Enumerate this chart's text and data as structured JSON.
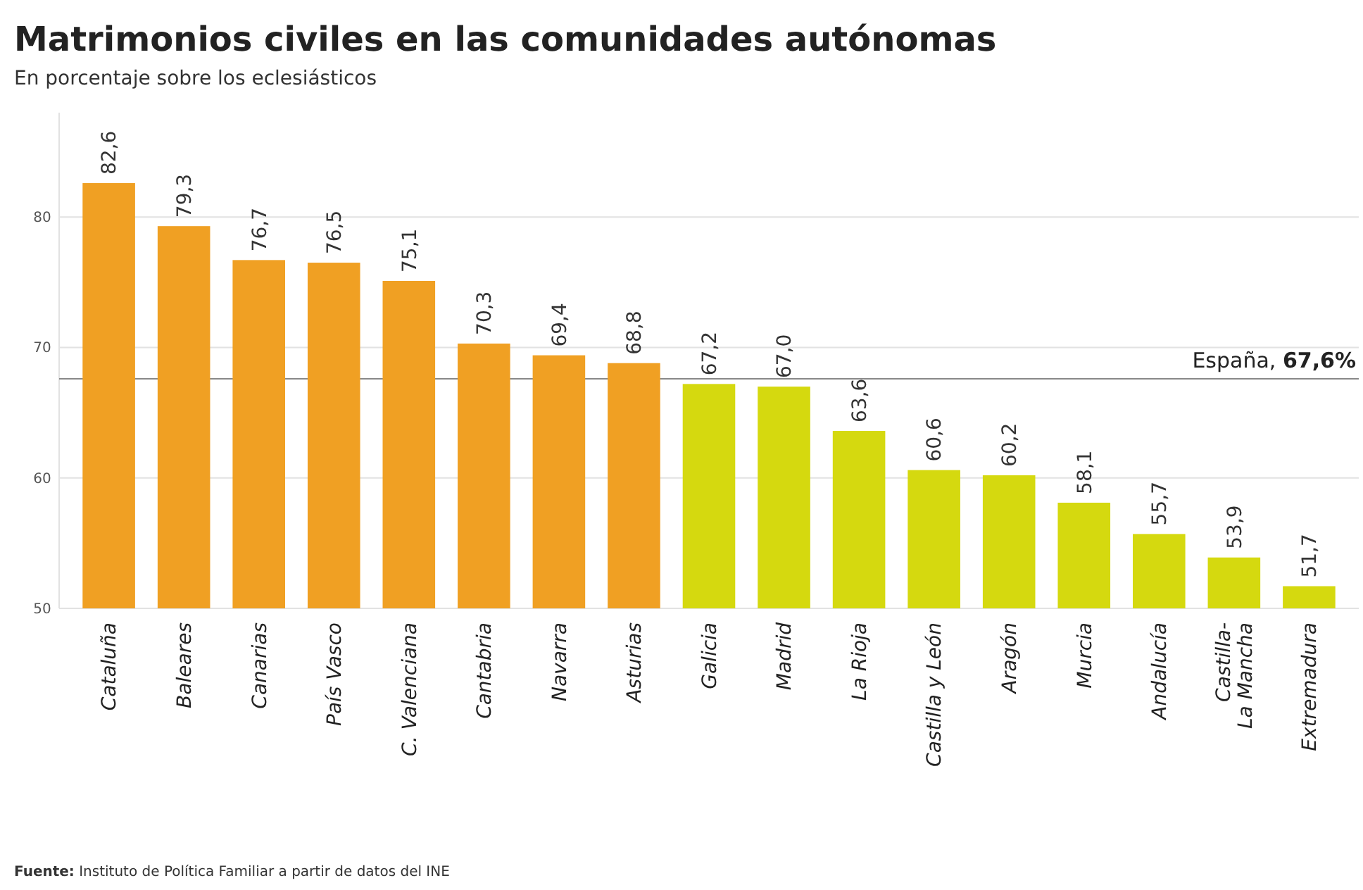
{
  "chart_data": {
    "type": "bar",
    "title": "Matrimonios civiles en las comunidades autónomas",
    "subtitle": "En porcentaje sobre los eclesiásticos",
    "categories": [
      "Cataluña",
      "Baleares",
      "Canarias",
      "País Vasco",
      "C. Valenciana",
      "Cantabria",
      "Navarra",
      "Asturias",
      "Galicia",
      "Madrid",
      "La Rioja",
      "Castilla y León",
      "Aragón",
      "Murcia",
      "Andalucía",
      "Castilla-\nLa Mancha",
      "Extremadura"
    ],
    "values": [
      82.6,
      79.3,
      76.7,
      76.5,
      75.1,
      70.3,
      69.4,
      68.8,
      67.2,
      67.0,
      63.6,
      60.6,
      60.2,
      58.1,
      55.7,
      53.9,
      51.7
    ],
    "value_labels": [
      "82,6",
      "79,3",
      "76,7",
      "76,5",
      "75,1",
      "70,3",
      "69,4",
      "68,8",
      "67,2",
      "67,0",
      "63,6",
      "60,6",
      "60,2",
      "58,1",
      "55,7",
      "53,9",
      "51,7"
    ],
    "colors": [
      "#f0a023",
      "#f0a023",
      "#f0a023",
      "#f0a023",
      "#f0a023",
      "#f0a023",
      "#f0a023",
      "#f0a023",
      "#d5d90f",
      "#d5d90f",
      "#d5d90f",
      "#d5d90f",
      "#d5d90f",
      "#d5d90f",
      "#d5d90f",
      "#d5d90f",
      "#d5d90f"
    ],
    "ylim": [
      50,
      88
    ],
    "yticks": [
      50,
      60,
      70,
      80
    ],
    "grid": "y",
    "ref_lines": [
      {
        "axis": "y",
        "value": 67.6,
        "label": "España, 67,6%",
        "color": "#888888"
      }
    ],
    "annotations": [
      "Fuente: Instituto de Política Familiar a partir de datos del INE"
    ]
  }
}
